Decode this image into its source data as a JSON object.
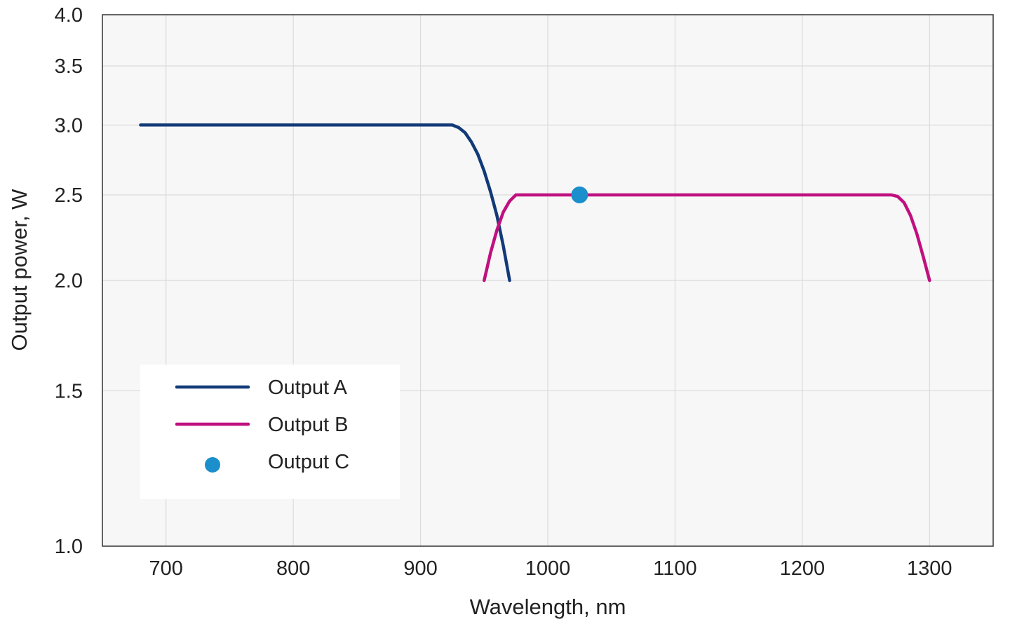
{
  "chart_data": {
    "type": "line",
    "title": "",
    "xlabel": "Wavelength, nm",
    "ylabel": "Output power, W",
    "xlim": [
      650,
      1350
    ],
    "ylim": [
      1.0,
      4.0
    ],
    "yscale": "log",
    "xticks": [
      700,
      800,
      900,
      1000,
      1100,
      1200,
      1300
    ],
    "yticks": [
      1.0,
      1.5,
      2.0,
      2.5,
      3.0,
      3.5,
      4.0
    ],
    "xtick_labels": [
      "700",
      "800",
      "900",
      "1000",
      "1100",
      "1200",
      "1300"
    ],
    "ytick_labels": [
      "1.0",
      "1.5",
      "2.0",
      "2.5",
      "3.0",
      "3.5",
      "4.0"
    ],
    "grid": true,
    "legend_position": "lower-left",
    "series": [
      {
        "name": "Output A",
        "color": "#123a78",
        "kind": "line",
        "x": [
          680,
          700,
          750,
          800,
          850,
          900,
          925,
          930,
          935,
          940,
          945,
          950,
          955,
          960,
          965,
          970
        ],
        "y": [
          3.0,
          3.0,
          3.0,
          3.0,
          3.0,
          3.0,
          3.0,
          2.98,
          2.94,
          2.87,
          2.78,
          2.66,
          2.52,
          2.37,
          2.19,
          2.0
        ]
      },
      {
        "name": "Output B",
        "color": "#c0107f",
        "kind": "line",
        "x": [
          950,
          955,
          960,
          965,
          970,
          975,
          980,
          1000,
          1100,
          1200,
          1270,
          1275,
          1280,
          1285,
          1290,
          1295,
          1300
        ],
        "y": [
          2.0,
          2.15,
          2.28,
          2.39,
          2.46,
          2.5,
          2.5,
          2.5,
          2.5,
          2.5,
          2.5,
          2.49,
          2.45,
          2.37,
          2.26,
          2.13,
          2.0
        ]
      },
      {
        "name": "Output C",
        "color": "#1a8fcc",
        "kind": "scatter",
        "x": [
          1025
        ],
        "y": [
          2.5
        ]
      }
    ]
  }
}
